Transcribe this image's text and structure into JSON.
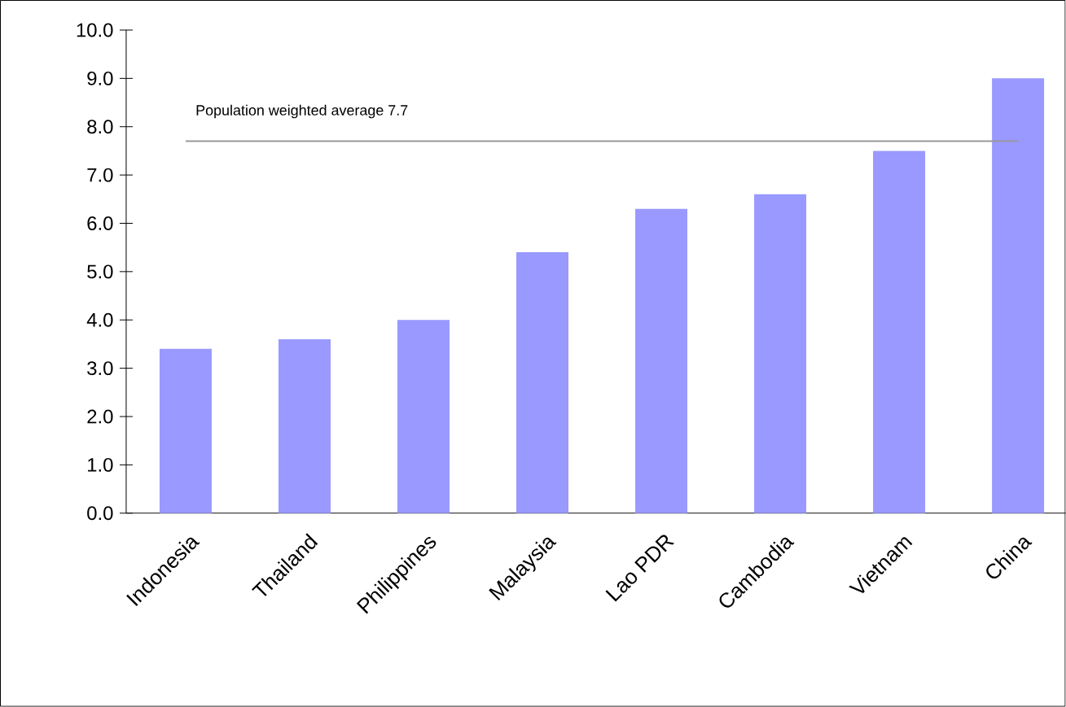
{
  "chart_data": {
    "type": "bar",
    "categories": [
      "Indonesia",
      "Thailand",
      "Philippines",
      "Malaysia",
      "Lao PDR",
      "Cambodia",
      "Vietnam",
      "China"
    ],
    "values": [
      3.4,
      3.6,
      4.0,
      5.4,
      6.3,
      6.6,
      7.5,
      9.0
    ],
    "color": "#9999ff",
    "ylim": [
      0,
      10
    ],
    "yticks": [
      {
        "value": 0,
        "label": "0.0"
      },
      {
        "value": 1,
        "label": "1.0"
      },
      {
        "value": 2,
        "label": "2.0"
      },
      {
        "value": 3,
        "label": "3.0"
      },
      {
        "value": 4,
        "label": "4.0"
      },
      {
        "value": 5,
        "label": "5.0"
      },
      {
        "value": 6,
        "label": "6.0"
      },
      {
        "value": 7,
        "label": "7.0"
      },
      {
        "value": 8,
        "label": "8.0"
      },
      {
        "value": 9,
        "label": "9.0"
      },
      {
        "value": 10,
        "label": "10.0"
      }
    ],
    "ref_lines": [
      {
        "axis": "y",
        "value": 7.7,
        "label": "Population weighted average 7.7",
        "color": "#999999"
      }
    ],
    "grid": false
  }
}
